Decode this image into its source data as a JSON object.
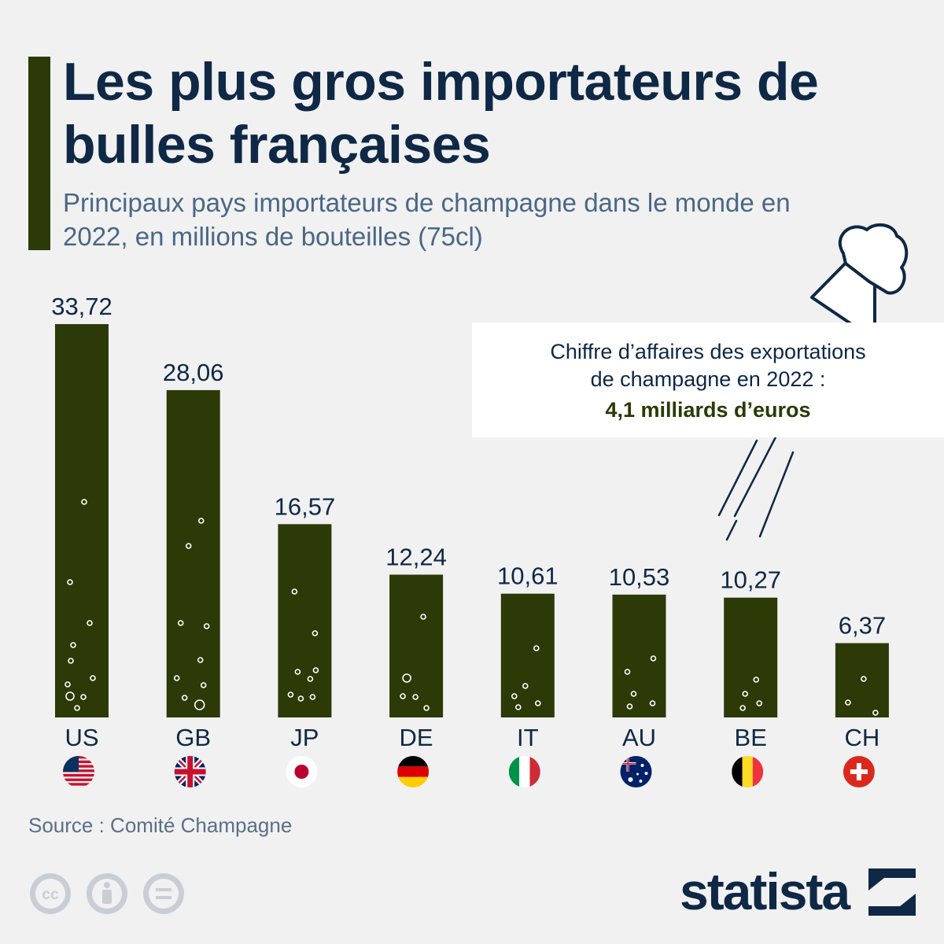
{
  "header": {
    "title": "Les plus gros importateurs de bulles françaises",
    "subtitle": "Principaux pays importateurs de champagne dans le monde en 2022, en millions de bouteilles (75cl)"
  },
  "callout": {
    "line1": "Chiffre d’affaires des exportations",
    "line2": "de champagne en 2022 :",
    "amount": "4,1 milliards d’euros"
  },
  "footer": {
    "source": "Source : Comité Champagne",
    "brand": "statista"
  },
  "colors": {
    "bar": "#2b3a07",
    "text": "#0e2846",
    "background": "#f1f1f1"
  },
  "chart_data": {
    "type": "bar",
    "categories": [
      "US",
      "GB",
      "JP",
      "DE",
      "IT",
      "AU",
      "BE",
      "CH"
    ],
    "values": [
      33.72,
      28.06,
      16.57,
      12.24,
      10.61,
      10.53,
      10.27,
      6.37
    ],
    "value_labels": [
      "33,72",
      "28,06",
      "16,57",
      "12,24",
      "10,61",
      "10,53",
      "10,27",
      "6,37"
    ],
    "flags": [
      "us-flag-icon",
      "gb-flag-icon",
      "jp-flag-icon",
      "de-flag-icon",
      "it-flag-icon",
      "au-flag-icon",
      "be-flag-icon",
      "ch-flag-icon"
    ],
    "ylim": [
      0,
      33.72
    ],
    "grid": false,
    "xlabel": "",
    "ylabel": ""
  }
}
